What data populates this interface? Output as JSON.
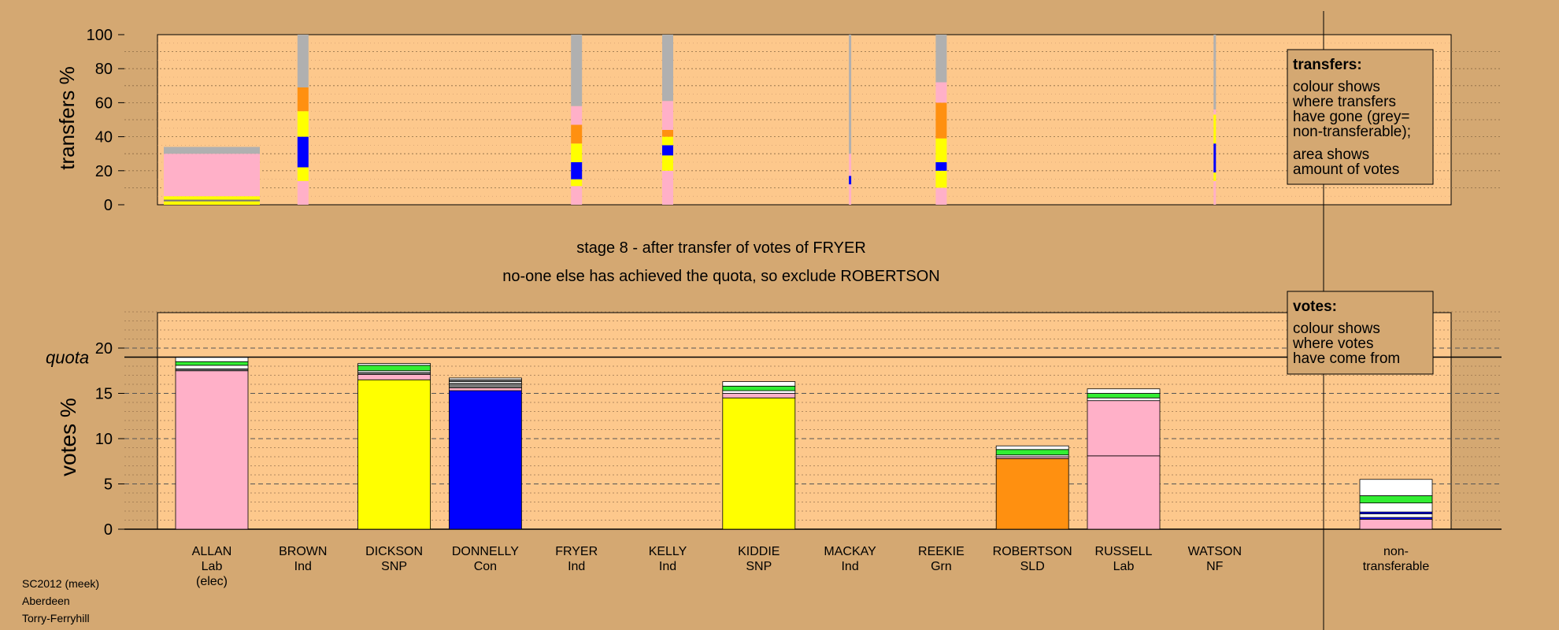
{
  "colors": {
    "background": "#d4a872",
    "panel": "#fdc88c",
    "Lab": "#ffb0c8",
    "SNP": "#ffff00",
    "Con": "#0000ff",
    "SLD": "#ff9010",
    "Grn": "#33ee33",
    "Ind": "#ffffff",
    "NF": "#777777",
    "nontransferable": "#b0b0b0"
  },
  "chart_data": {
    "type": "bar",
    "title": "stage 8 - after transfer of votes of FRYER",
    "subtitle": "no-one else has achieved the quota, so exclude ROBERTSON",
    "footer": [
      "SC2012 (meek)",
      "Aberdeen",
      "Torry-Ferryhill"
    ],
    "candidates": [
      {
        "name": "ALLAN",
        "party": "Lab",
        "note": "(elec)"
      },
      {
        "name": "BROWN",
        "party": "Ind",
        "note": ""
      },
      {
        "name": "DICKSON",
        "party": "SNP",
        "note": ""
      },
      {
        "name": "DONNELLY",
        "party": "Con",
        "note": ""
      },
      {
        "name": "FRYER",
        "party": "Ind",
        "note": ""
      },
      {
        "name": "KELLY",
        "party": "Ind",
        "note": ""
      },
      {
        "name": "KIDDIE",
        "party": "SNP",
        "note": ""
      },
      {
        "name": "MACKAY",
        "party": "Ind",
        "note": ""
      },
      {
        "name": "REEKIE",
        "party": "Grn",
        "note": ""
      },
      {
        "name": "ROBERTSON",
        "party": "SLD",
        "note": ""
      },
      {
        "name": "RUSSELL",
        "party": "Lab",
        "note": ""
      },
      {
        "name": "WATSON",
        "party": "NF",
        "note": ""
      }
    ],
    "nontransferable_label": [
      "non-",
      "transferable"
    ],
    "votes": {
      "ylabel": "votes %",
      "ylim": [
        0,
        24
      ],
      "yticks": [
        0,
        5,
        10,
        15,
        20
      ],
      "quota": 19.0,
      "quota_label": "quota",
      "bars": [
        {
          "candidate": "ALLAN",
          "segments": [
            {
              "party": "Lab",
              "value": 17.5
            },
            {
              "party": "NF",
              "value": 0.2
            },
            {
              "party": "Ind",
              "value": 0.4
            },
            {
              "party": "Grn",
              "value": 0.4
            },
            {
              "party": "Ind",
              "value": 0.5
            }
          ]
        },
        {
          "candidate": "DICKSON",
          "segments": [
            {
              "party": "SNP",
              "value": 16.5
            },
            {
              "party": "Lab",
              "value": 0.6
            },
            {
              "party": "NF",
              "value": 0.2
            },
            {
              "party": "Ind",
              "value": 0.2
            },
            {
              "party": "Grn",
              "value": 0.6
            },
            {
              "party": "Ind",
              "value": 0.2
            }
          ]
        },
        {
          "candidate": "DONNELLY",
          "segments": [
            {
              "party": "Con",
              "value": 15.3
            },
            {
              "party": "Lab",
              "value": 0.3
            },
            {
              "party": "NF",
              "value": 0.5
            },
            {
              "party": "Ind",
              "value": 0.2
            },
            {
              "party": "NF",
              "value": 0.2
            },
            {
              "party": "Ind",
              "value": 0.2
            }
          ]
        },
        {
          "candidate": "KIDDIE",
          "segments": [
            {
              "party": "SNP",
              "value": 14.5
            },
            {
              "party": "Lab",
              "value": 0.5
            },
            {
              "party": "Ind",
              "value": 0.3
            },
            {
              "party": "Grn",
              "value": 0.5
            },
            {
              "party": "Ind",
              "value": 0.5
            }
          ]
        },
        {
          "candidate": "ROBERTSON",
          "segments": [
            {
              "party": "SLD",
              "value": 7.8
            },
            {
              "party": "Lab",
              "value": 0.2
            },
            {
              "party": "Ind",
              "value": 0.2
            },
            {
              "party": "Grn",
              "value": 0.6
            },
            {
              "party": "Ind",
              "value": 0.4
            }
          ]
        },
        {
          "candidate": "RUSSELL",
          "segments": [
            {
              "party": "Lab",
              "value": 8.1
            },
            {
              "party": "Lab",
              "value": 6.1
            },
            {
              "party": "Ind",
              "value": 0.3
            },
            {
              "party": "Grn",
              "value": 0.5
            },
            {
              "party": "Ind",
              "value": 0.5
            }
          ]
        },
        {
          "candidate": "non-transferable",
          "segments": [
            {
              "party": "Lab",
              "value": 1.1
            },
            {
              "party": "Con",
              "value": 0.2
            },
            {
              "party": "Ind",
              "value": 0.4
            },
            {
              "party": "Con",
              "value": 0.2
            },
            {
              "party": "Ind",
              "value": 1.0
            },
            {
              "party": "Grn",
              "value": 0.8
            },
            {
              "party": "Ind",
              "value": 1.8
            }
          ]
        }
      ]
    },
    "transfers": {
      "ylabel": "transfers %",
      "ylim": [
        0,
        100
      ],
      "yticks": [
        0,
        20,
        40,
        60,
        80,
        100
      ],
      "bars": [
        {
          "candidate": "ALLAN",
          "segments": [
            {
              "party": "SNP",
              "value": 2
            },
            {
              "party": "NF",
              "value": 1
            },
            {
              "party": "SNP",
              "value": 2
            },
            {
              "party": "Lab",
              "value": 25
            },
            {
              "party": "nontransferable",
              "value": 4
            }
          ]
        },
        {
          "candidate": "BROWN",
          "segments": [
            {
              "party": "Lab",
              "value": 14
            },
            {
              "party": "SNP",
              "value": 8
            },
            {
              "party": "Con",
              "value": 18
            },
            {
              "party": "SNP",
              "value": 15
            },
            {
              "party": "SLD",
              "value": 14
            },
            {
              "party": "nontransferable",
              "value": 31
            }
          ]
        },
        {
          "candidate": "FRYER",
          "segments": [
            {
              "party": "Lab",
              "value": 11
            },
            {
              "party": "SNP",
              "value": 4
            },
            {
              "party": "Con",
              "value": 10
            },
            {
              "party": "SNP",
              "value": 11
            },
            {
              "party": "SLD",
              "value": 11
            },
            {
              "party": "Lab",
              "value": 11
            },
            {
              "party": "nontransferable",
              "value": 42
            }
          ]
        },
        {
          "candidate": "KELLY",
          "segments": [
            {
              "party": "Lab",
              "value": 20
            },
            {
              "party": "SNP",
              "value": 9
            },
            {
              "party": "Con",
              "value": 6
            },
            {
              "party": "SNP",
              "value": 5
            },
            {
              "party": "SLD",
              "value": 4
            },
            {
              "party": "Lab",
              "value": 17
            },
            {
              "party": "nontransferable",
              "value": 39
            }
          ]
        },
        {
          "candidate": "MACKAY",
          "segments": [
            {
              "party": "Lab",
              "value": 12
            },
            {
              "party": "Con",
              "value": 5
            },
            {
              "party": "Lab",
              "value": 13
            },
            {
              "party": "nontransferable",
              "value": 70
            }
          ]
        },
        {
          "candidate": "REEKIE",
          "segments": [
            {
              "party": "Lab",
              "value": 10
            },
            {
              "party": "SNP",
              "value": 10
            },
            {
              "party": "Con",
              "value": 5
            },
            {
              "party": "SNP",
              "value": 14
            },
            {
              "party": "SLD",
              "value": 21
            },
            {
              "party": "Lab",
              "value": 12
            },
            {
              "party": "nontransferable",
              "value": 28
            }
          ]
        },
        {
          "candidate": "WATSON",
          "segments": [
            {
              "party": "Lab",
              "value": 14
            },
            {
              "party": "SNP",
              "value": 5
            },
            {
              "party": "Con",
              "value": 17
            },
            {
              "party": "SNP",
              "value": 17
            },
            {
              "party": "Lab",
              "value": 3
            },
            {
              "party": "nontransferable",
              "value": 44
            }
          ]
        }
      ]
    },
    "transfers_key": {
      "title": "transfers:",
      "lines": [
        "colour shows",
        "where transfers",
        "have gone (grey=",
        "non-transferable);",
        "area shows",
        "amount of votes"
      ]
    },
    "votes_key": {
      "title": "votes:",
      "lines": [
        "colour shows",
        "where votes",
        "have come from"
      ]
    }
  }
}
